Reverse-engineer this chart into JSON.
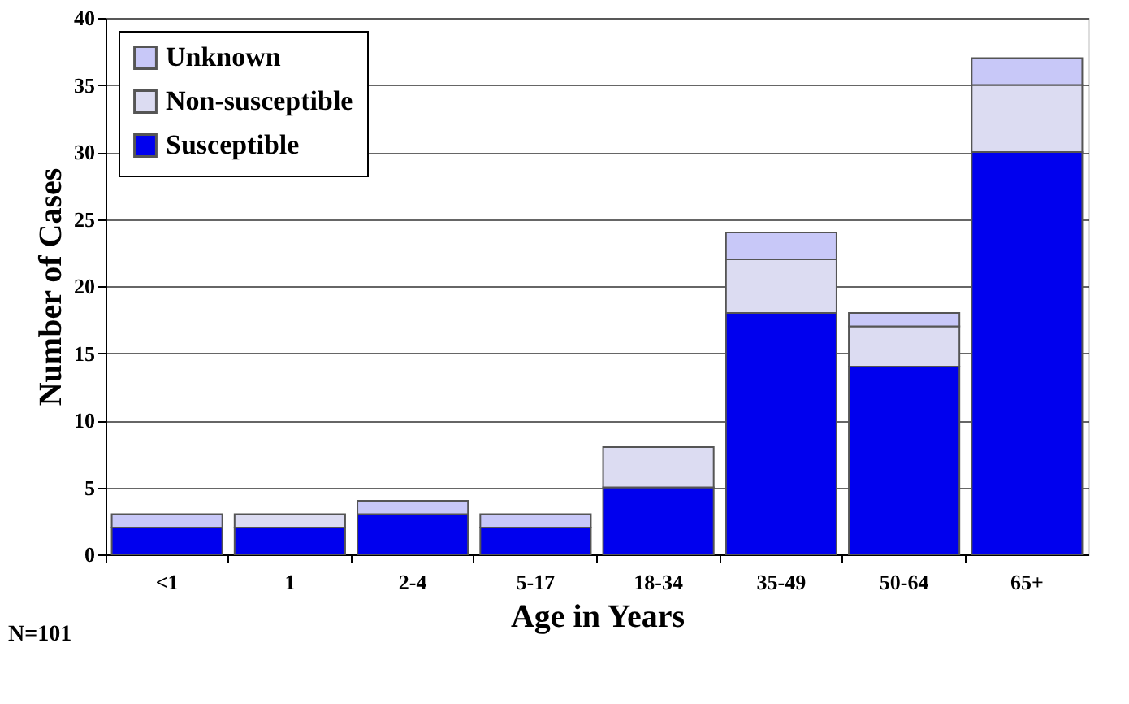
{
  "chart_data": {
    "type": "bar",
    "stacked": true,
    "xlabel": "Age in Years",
    "ylabel": "Number of Cases",
    "categories": [
      "<1",
      "1",
      "2-4",
      "5-17",
      "18-34",
      "35-49",
      "50-64",
      "65+"
    ],
    "series": [
      {
        "name": "Susceptible",
        "color": "#0000ee",
        "values": [
          2,
          2,
          3,
          2,
          5,
          18,
          14,
          30
        ]
      },
      {
        "name": "Non-susceptible",
        "color": "#dcdcf2",
        "values": [
          0,
          1,
          0,
          0,
          3,
          4,
          3,
          5
        ]
      },
      {
        "name": "Unknown",
        "color": "#c8c8f8",
        "values": [
          1,
          0,
          1,
          1,
          0,
          2,
          1,
          2
        ]
      }
    ],
    "ylim": [
      0,
      40
    ],
    "yticks": [
      0,
      5,
      10,
      15,
      20,
      25,
      30,
      35,
      40
    ],
    "grid": "y",
    "legend": "top left",
    "annotations": [
      "N=101"
    ]
  }
}
